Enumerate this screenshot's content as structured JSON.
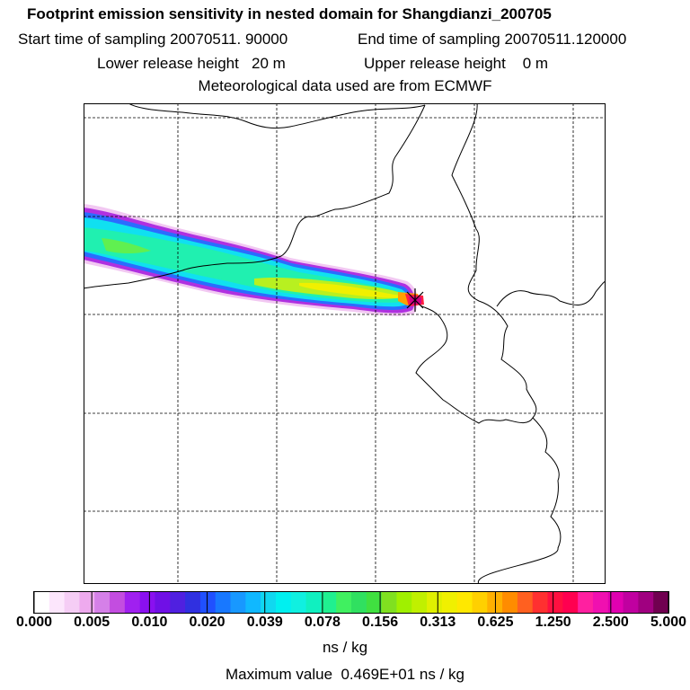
{
  "header": {
    "title": "Footprint emission sensitivity in nested domain for Shangdianzi_200705",
    "start_label": "Start time of sampling 20070511. 90000",
    "end_label": "End time of sampling 20070511.120000",
    "lower_label": "Lower release height   20 m",
    "upper_label": "Upper release height    0 m",
    "met_label": "Meteorological data used are from ECMWF"
  },
  "chart_data": {
    "type": "heatmap",
    "title": "Footprint emission sensitivity in nested domain for Shangdianzi_200705",
    "colorbar": {
      "unit": "ns / kg",
      "tick_labels": [
        "0.000",
        "0.005",
        "0.010",
        "0.020",
        "0.039",
        "0.078",
        "0.156",
        "0.313",
        "0.625",
        "1.250",
        "2.500",
        "5.000"
      ],
      "tick_values": [
        0.0,
        0.005,
        0.01,
        0.02,
        0.039,
        0.078,
        0.156,
        0.313,
        0.625,
        1.25,
        2.5,
        5.0
      ],
      "colors": [
        "#ffffff",
        "#fce6fc",
        "#f5cdf5",
        "#eeaaee",
        "#d580e8",
        "#c34de0",
        "#a020f0",
        "#8a10f0",
        "#7010e6",
        "#5020e0",
        "#3030e0",
        "#2050ff",
        "#1878ff",
        "#1898ff",
        "#10b8ff",
        "#10d8f0",
        "#00f0f0",
        "#10f0e0",
        "#10f0c0",
        "#20f090",
        "#40f060",
        "#30e060",
        "#40e040",
        "#80e020",
        "#a0f000",
        "#c0f000",
        "#e0f000",
        "#f0f000",
        "#ffe800",
        "#ffd000",
        "#ffb000",
        "#ff8c00",
        "#ff6020",
        "#ff3030",
        "#ff1040",
        "#ff0050",
        "#ff20a0",
        "#f010b0",
        "#e000b0",
        "#c000a0",
        "#a00080",
        "#700050"
      ]
    },
    "maximum": {
      "text": "Maximum value  0.469E+01 ns / kg",
      "value": 4.69
    },
    "receptor": "Shangdianzi"
  },
  "colors": {
    "frame": "#000000",
    "grid": "#000000",
    "coast": "#000000"
  }
}
